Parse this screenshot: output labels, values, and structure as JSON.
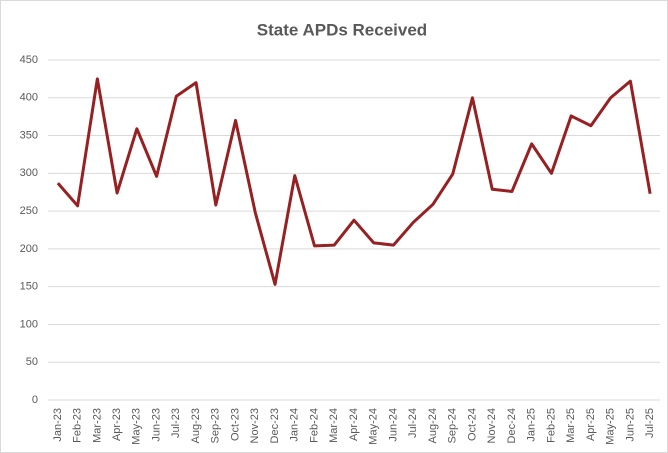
{
  "chart_data": {
    "type": "line",
    "title": "State APDs Received",
    "categories": [
      "Jan-23",
      "Feb-23",
      "Mar-23",
      "Apr-23",
      "May-23",
      "Jun-23",
      "Jul-23",
      "Aug-23",
      "Sep-23",
      "Oct-23",
      "Nov-23",
      "Dec-23",
      "Jan-24",
      "Feb-24",
      "Mar-24",
      "Apr-24",
      "May-24",
      "Jun-24",
      "Jul-24",
      "Aug-24",
      "Sep-24",
      "Oct-24",
      "Nov-24",
      "Dec-24",
      "Jan-25",
      "Feb-25",
      "Mar-25",
      "Apr-25",
      "May-25",
      "Jun-25",
      "Jul-25"
    ],
    "series": [
      {
        "name": "State APDs Received",
        "color": "#962022",
        "values": [
          287,
          257,
          425,
          274,
          359,
          296,
          402,
          420,
          258,
          370,
          248,
          153,
          297,
          204,
          205,
          238,
          208,
          205,
          235,
          259,
          299,
          400,
          279,
          276,
          339,
          300,
          376,
          363,
          400,
          422,
          273
        ]
      }
    ],
    "ylim": [
      0,
      450
    ],
    "yticks": [
      0,
      50,
      100,
      150,
      200,
      250,
      300,
      350,
      400,
      450
    ],
    "grid": true
  }
}
